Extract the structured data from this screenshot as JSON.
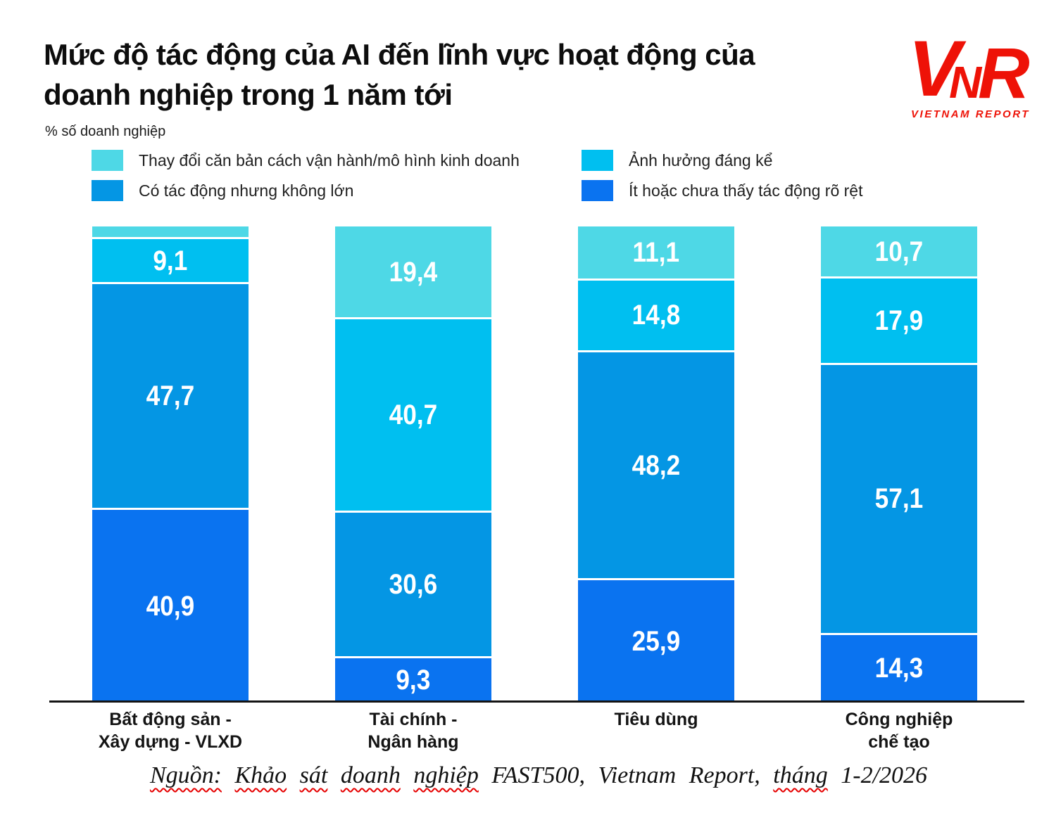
{
  "header": {
    "title_line1": "Mức độ tác động của AI đến lĩnh vực hoạt động của",
    "title_line2": "doanh nghiệp trong 1 năm tới",
    "subtitle": "% số doanh nghiệp",
    "logo": {
      "letters": [
        "V",
        "N",
        "R"
      ],
      "tagline": "VIETNAM REPORT",
      "color": "#EE1207"
    }
  },
  "legend": {
    "items": [
      {
        "label": "Thay đổi căn bản cách vận hành/mô hình kinh doanh",
        "color": "#4ED8E6"
      },
      {
        "label": "Ảnh hưởng đáng kể",
        "color": "#00BFF0"
      },
      {
        "label": "Có tác động nhưng không lớn",
        "color": "#0496E4"
      },
      {
        "label": "Ít hoặc chưa thấy tác động rõ rệt",
        "color": "#0A73F0"
      }
    ]
  },
  "chart_data": {
    "type": "bar",
    "stacked": true,
    "orientation": "vertical",
    "unit": "% số doanh nghiệp",
    "ylim": [
      0,
      100
    ],
    "grid": false,
    "legend_position": "top",
    "categories": [
      "Bất động sản -\nXây dựng - VLXD",
      "Tài chính -\nNgân hàng",
      "Tiêu dùng",
      "Công nghiệp\nchế tạo"
    ],
    "series": [
      {
        "name": "Thay đổi căn bản cách vận hành/mô hình kinh doanh",
        "color": "#4ED8E6",
        "values": [
          2.3,
          19.4,
          11.1,
          10.7
        ],
        "labels": [
          "",
          "19,4",
          "11,1",
          "10,7"
        ]
      },
      {
        "name": "Ảnh hưởng đáng kể",
        "color": "#00BFF0",
        "values": [
          9.1,
          40.7,
          14.8,
          17.9
        ],
        "labels": [
          "9,1",
          "40,7",
          "14,8",
          "17,9"
        ]
      },
      {
        "name": "Có tác động nhưng không lớn",
        "color": "#0496E4",
        "values": [
          47.7,
          30.6,
          48.2,
          57.1
        ],
        "labels": [
          "47,7",
          "30,6",
          "48,2",
          "57,1"
        ]
      },
      {
        "name": "Ít hoặc chưa thấy tác động rõ rệt",
        "color": "#0A73F0",
        "values": [
          40.9,
          9.3,
          25.9,
          14.3
        ],
        "labels": [
          "40,9",
          "9,3",
          "25,9",
          "14,3"
        ]
      }
    ]
  },
  "source": {
    "words": [
      {
        "text": "Nguồn:",
        "wavy": true
      },
      {
        "text": "Khảo",
        "wavy": true
      },
      {
        "text": "sát",
        "wavy": true
      },
      {
        "text": "doanh",
        "wavy": true
      },
      {
        "text": "nghiệp",
        "wavy": true
      },
      {
        "text": "FAST500,",
        "wavy": false
      },
      {
        "text": "Vietnam",
        "wavy": false
      },
      {
        "text": "Report,",
        "wavy": false
      },
      {
        "text": "tháng",
        "wavy": true
      },
      {
        "text": "1-2/2026",
        "wavy": false
      }
    ]
  }
}
